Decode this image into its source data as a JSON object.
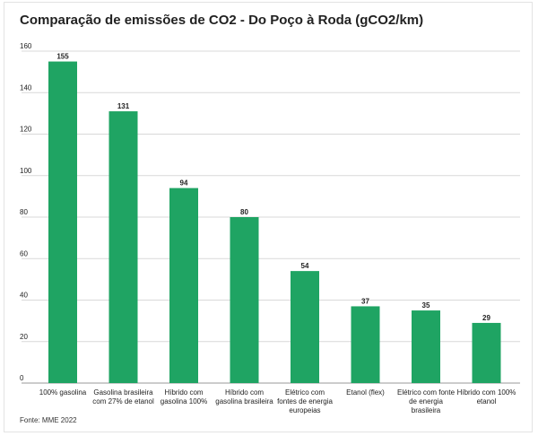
{
  "chart_data": {
    "type": "bar",
    "title": "Comparação de emissões de CO2  - Do Poço à Roda (gCO2/km)",
    "categories": [
      "100% gasolina",
      "Gasolina brasileira com 27% de etanol",
      "Híbrido com gasolina 100%",
      "Híbrido com gasolina brasileira",
      "Elétrico com fontes de energia europeias",
      "Etanol (flex)",
      "Elétrico com fonte de energia brasileira",
      "Híbrido com 100% etanol"
    ],
    "category_lines": [
      [
        "100% gasolina"
      ],
      [
        "Gasolina brasileira",
        "com 27% de etanol"
      ],
      [
        "Híbrido com",
        "gasolina 100%"
      ],
      [
        "Híbrido com",
        "gasolina brasileira"
      ],
      [
        "Elétrico com",
        "fontes de energia",
        "europeias"
      ],
      [
        "Etanol (flex)"
      ],
      [
        "Elétrico com fonte",
        "de energia",
        "brasileira"
      ],
      [
        "Híbrido com 100%",
        "etanol"
      ]
    ],
    "values": [
      155,
      131,
      94,
      80,
      54,
      37,
      35,
      29
    ],
    "ylim": [
      0,
      160
    ],
    "yticks": [
      0,
      20,
      40,
      60,
      80,
      100,
      120,
      140,
      160
    ],
    "grid": true,
    "bar_color": "#1fa463",
    "source": "Fonte: MME 2022"
  }
}
